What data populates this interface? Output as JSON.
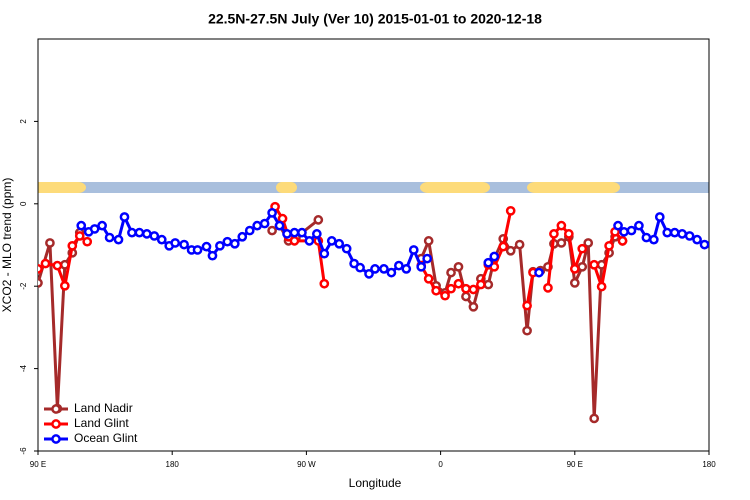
{
  "chart_data": {
    "type": "line",
    "title": "22.5N-27.5N July (Ver 10)   2015-01-01 to 2020-12-18",
    "x_label": "Longitude",
    "y_label": "XCO2 - MLO trend (ppm)",
    "xlim": [
      90,
      540
    ],
    "xticks": [
      {
        "value": 90,
        "label": "90 E"
      },
      180,
      {
        "value": 270,
        "label": "90 W"
      },
      {
        "value": 360,
        "label": "0"
      },
      {
        "value": 450,
        "label": "90 E"
      },
      {
        "value": 540,
        "label": "180"
      }
    ],
    "ylim": [
      -6,
      4
    ],
    "yticks": [
      -6,
      -4,
      -2,
      0,
      2
    ],
    "legend": "bottom-left",
    "series": [
      {
        "name": "Land Nadir",
        "color": "#a52a2a",
        "x": [
          90,
          98,
          103,
          108,
          113,
          118,
          200,
          247,
          252,
          258,
          263,
          278,
          310,
          347,
          352,
          357,
          363,
          367,
          372,
          377,
          382,
          387,
          392,
          396,
          402,
          407,
          413,
          418,
          422,
          427,
          432,
          436,
          441,
          446,
          450,
          455,
          459,
          463,
          468,
          473,
          477,
          482
        ],
        "values": [
          -1.92,
          -0.95,
          -4.97,
          -1.48,
          -1.19,
          -0.7,
          null,
          -0.65,
          -0.53,
          -0.9,
          -0.82,
          -0.39,
          null,
          -1.33,
          -0.9,
          -1.99,
          -2.16,
          -1.67,
          -1.53,
          -2.25,
          -2.5,
          -1.82,
          -1.96,
          -1.33,
          -0.85,
          -1.14,
          -0.99,
          -3.08,
          -1.65,
          -1.62,
          -1.53,
          -0.97,
          -0.95,
          -0.8,
          -1.92,
          -1.53,
          -0.95,
          -5.21,
          -1.48,
          -1.19,
          -0.8,
          -0.9
        ]
      },
      {
        "name": "Land Glint",
        "color": "#ff0000",
        "x": [
          90,
          95,
          103,
          108,
          113,
          118,
          123,
          200,
          249,
          254,
          258,
          262,
          278,
          282,
          320,
          347,
          352,
          357,
          363,
          367,
          372,
          377,
          382,
          387,
          392,
          396,
          402,
          407,
          413,
          418,
          422,
          427,
          432,
          436,
          441,
          446,
          450,
          455,
          459,
          463,
          468,
          473,
          477,
          482
        ],
        "values": [
          -1.58,
          -1.45,
          -1.5,
          -1.99,
          -1.02,
          -0.78,
          -0.92,
          null,
          -0.07,
          -0.36,
          -0.8,
          -0.9,
          -0.9,
          -1.94,
          null,
          -1.5,
          -1.82,
          -2.11,
          -2.23,
          -2.06,
          -1.94,
          -2.06,
          -2.08,
          -1.96,
          -1.48,
          -1.53,
          -1.04,
          -0.17,
          null,
          -2.47,
          -1.67,
          null,
          -2.04,
          -0.73,
          -0.53,
          -0.73,
          -1.58,
          -1.09,
          null,
          -1.48,
          -2.01,
          -1.02,
          -0.68,
          -0.9
        ]
      },
      {
        "name": "Ocean Glint",
        "color": "#0000ff",
        "x": [
          119,
          124,
          128,
          133,
          138,
          144,
          148,
          153,
          158,
          163,
          168,
          173,
          178,
          182,
          188,
          193,
          197,
          203,
          207,
          212,
          217,
          222,
          227,
          232,
          237,
          242,
          247,
          252,
          257,
          262,
          267,
          272,
          277,
          282,
          287,
          292,
          297,
          302,
          306,
          312,
          316,
          322,
          327,
          332,
          337,
          342,
          347,
          351,
          370,
          392,
          396,
          410,
          426,
          450,
          479,
          483,
          488,
          493,
          498,
          503,
          507,
          512,
          517,
          522,
          527,
          532,
          537
        ],
        "values": [
          -0.53,
          -0.68,
          -0.61,
          -0.53,
          -0.82,
          -0.87,
          -0.32,
          -0.7,
          -0.7,
          -0.73,
          -0.78,
          -0.87,
          -1.02,
          -0.95,
          -0.99,
          -1.12,
          -1.12,
          -1.04,
          -1.26,
          -1.02,
          -0.92,
          -0.97,
          -0.8,
          -0.65,
          -0.53,
          -0.48,
          -0.22,
          -0.53,
          -0.73,
          -0.7,
          -0.7,
          -0.9,
          -0.73,
          -1.21,
          -0.9,
          -0.97,
          -1.09,
          -1.45,
          -1.55,
          -1.7,
          -1.58,
          -1.58,
          -1.67,
          -1.5,
          -1.58,
          -1.12,
          -1.53,
          -1.33,
          null,
          -1.43,
          -1.28,
          null,
          -1.67,
          null,
          -0.53,
          -0.68,
          -0.65,
          -0.53,
          -0.82,
          -0.87,
          -0.32,
          -0.7,
          -0.7,
          -0.73,
          -0.78,
          -0.87,
          -0.99
        ]
      }
    ]
  }
}
